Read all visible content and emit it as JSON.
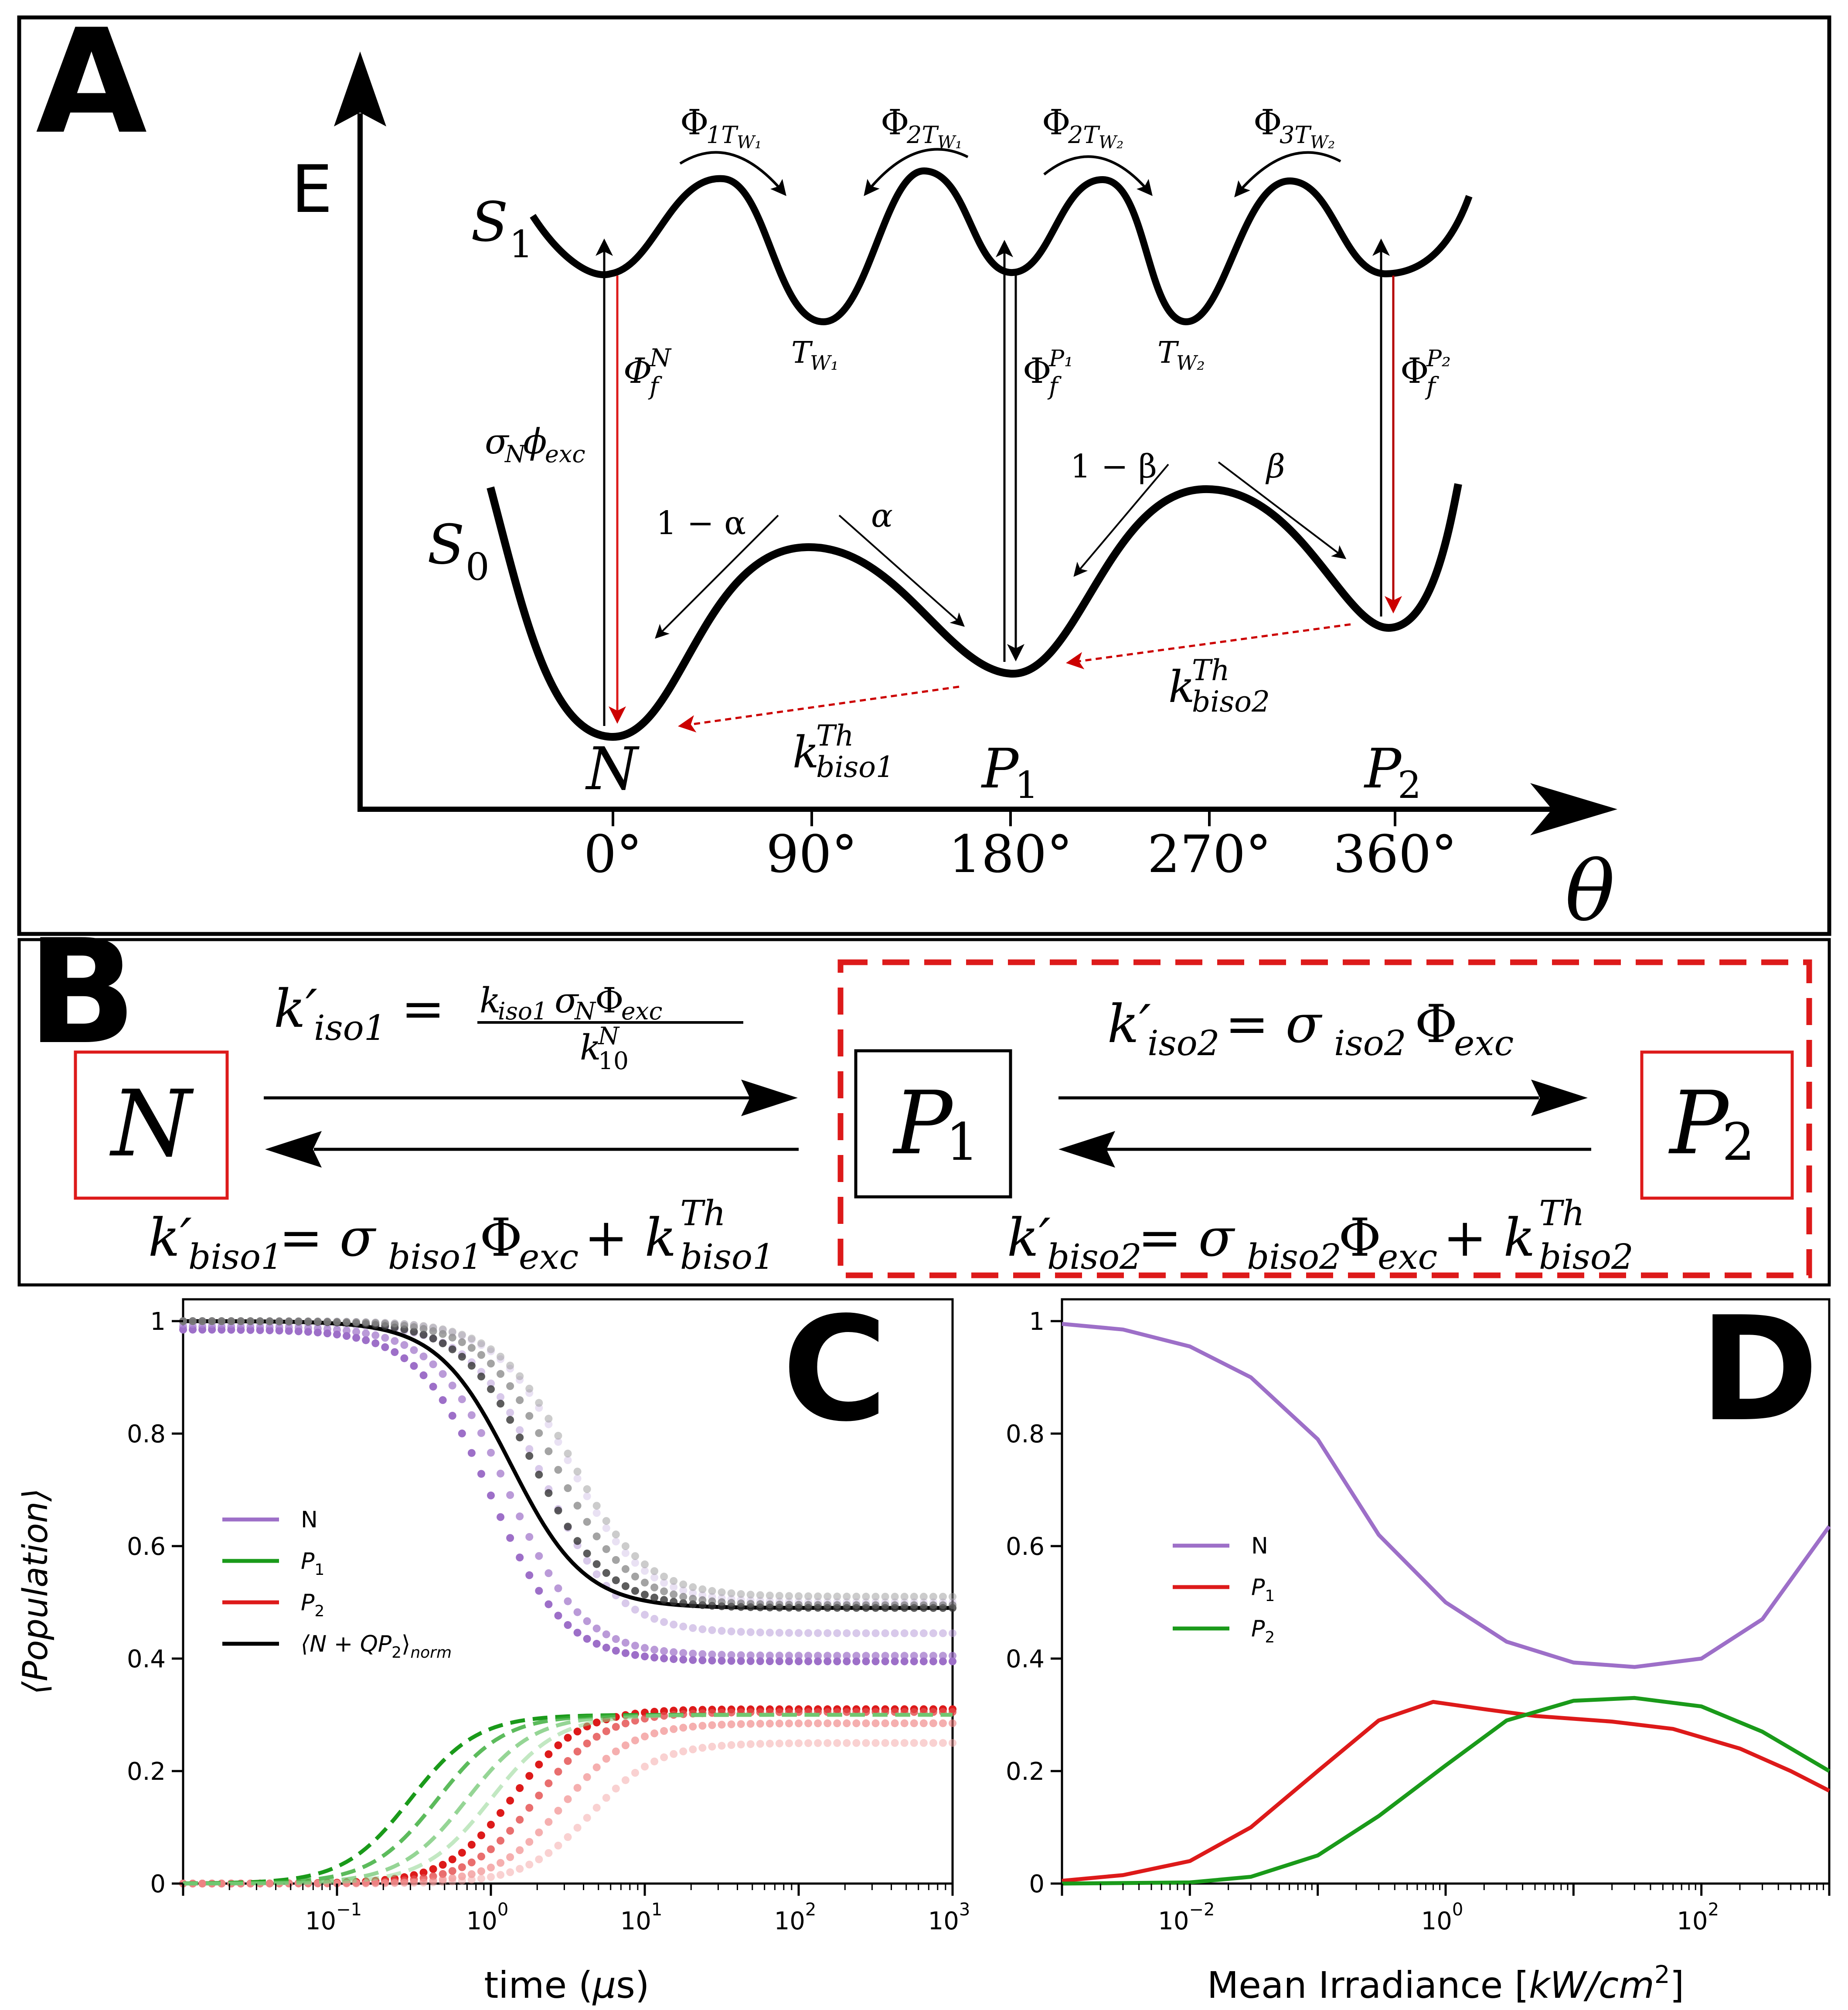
{
  "colors": {
    "black": "#000000",
    "red": "#dd1a1a",
    "dark_red": "#b50000",
    "purple": "#9d6fc8",
    "green": "#1a9a1a",
    "grey": "#9a9a9a"
  },
  "panelA": {
    "letter": "A",
    "energy_axis_label": "E",
    "angle_axis_label": "θ",
    "s1_label": "S",
    "s1_sub": "1",
    "s0_label": "S",
    "s0_sub": "0",
    "ticks": [
      "0°",
      "90°",
      "180°",
      "270°",
      "360°"
    ],
    "states": {
      "N": {
        "main": "N",
        "sub": ""
      },
      "P1": {
        "main": "P",
        "sub": "1"
      },
      "P2": {
        "main": "P",
        "sub": "2"
      }
    },
    "phi_top": [
      {
        "main": "Φ",
        "sub": "1T",
        "subsub": "W₁"
      },
      {
        "main": "Φ",
        "sub": "2T",
        "subsub": "W₁"
      },
      {
        "main": "Φ",
        "sub": "2T",
        "subsub": "W₂"
      },
      {
        "main": "Φ",
        "sub": "3T",
        "subsub": "W₂"
      }
    ],
    "tw_labels": [
      {
        "main": "T",
        "sub": "W₁"
      },
      {
        "main": "T",
        "sub": "W₂"
      }
    ],
    "fluor": [
      {
        "main": "Φ",
        "sup": "N",
        "sub": "f"
      },
      {
        "main": "Φ",
        "sup": "P₁",
        "sub": "f"
      },
      {
        "main": "Φ",
        "sup": "P₂",
        "sub": "f"
      }
    ],
    "excitation_label": {
      "sigma": "σ",
      "sigma_sub": "N",
      "phi": "ϕ",
      "phi_sub": "exc"
    },
    "branch": {
      "one_minus_alpha": "1 − α",
      "alpha": "α",
      "one_minus_beta": "1 − β",
      "beta": "β"
    },
    "thermal": [
      {
        "main": "k",
        "sup": "Th",
        "sub": "biso1"
      },
      {
        "main": "k",
        "sup": "Th",
        "sub": "biso2"
      }
    ]
  },
  "panelB": {
    "letter": "B",
    "states": {
      "N": {
        "main": "N",
        "sub": ""
      },
      "P1": {
        "main": "P",
        "sub": "1"
      },
      "P2": {
        "main": "P",
        "sub": "2"
      }
    },
    "k_iso1": {
      "lhs": "k′",
      "lhs_sub": "iso1",
      "eq": "=",
      "num": "k",
      "num_sub": "iso1",
      "num_sigma": "σ",
      "num_sigma_sub": "N",
      "num_phi": "Φ",
      "num_phi_sub": "exc",
      "den": "k",
      "den_sup": "N",
      "den_sub": "10"
    },
    "k_iso2": {
      "lhs": "k′",
      "lhs_sub": "iso2",
      "eq": "= σ",
      "sigma_sub": "iso2",
      "phi": "Φ",
      "phi_sub": "exc"
    },
    "k_biso1": {
      "lhs": "k′",
      "lhs_sub": "biso1",
      "eq": "= σ",
      "sigma_sub": "biso1",
      "phi": "Φ",
      "phi_sub": "exc",
      "plus": " + k",
      "k_sup": "Th",
      "k_sub": "biso1"
    },
    "k_biso2": {
      "lhs": "k′",
      "lhs_sub": "biso2",
      "eq": "= σ",
      "sigma_sub": "biso2",
      "phi": "Φ",
      "phi_sub": "exc",
      "plus": " + k",
      "k_sup": "Th",
      "k_sub": "biso2"
    }
  },
  "chart_data": [
    {
      "type": "line",
      "panel": "C",
      "letter": "C",
      "xscale": "log",
      "xlim": [
        0.01,
        1000
      ],
      "ylim": [
        0,
        1
      ],
      "xlabel_pre": "time (",
      "xlabel_mu": "μ",
      "xlabel_post": "s)",
      "ylabel": "⟨Population⟩",
      "yticks": [
        "0",
        "0.2",
        "0.4",
        "0.6",
        "0.8",
        "1"
      ],
      "xticks": [
        {
          "base": "10",
          "exp": "−1"
        },
        {
          "base": "10",
          "exp": "0"
        },
        {
          "base": "10",
          "exp": "1"
        },
        {
          "base": "10",
          "exp": "2"
        },
        {
          "base": "10",
          "exp": "3"
        }
      ],
      "legend": [
        {
          "label": "N",
          "sub": ""
        },
        {
          "label": "P",
          "sub": "1"
        },
        {
          "label": "P",
          "sub": "2"
        },
        {
          "label": "⟨N + QP",
          "sub": "2",
          "tail": "⟩",
          "tail_sub": "norm"
        }
      ],
      "legend_position": "center-left",
      "series": [
        {
          "name": "N (dotted, darkest)",
          "style": "dotted",
          "color": "#9d6fc8",
          "opacity": 1.0,
          "start": 0.985,
          "end": 0.395,
          "mid": 1.0,
          "width": 0.55
        },
        {
          "name": "N (dotted)",
          "style": "dotted",
          "color": "#9d6fc8",
          "opacity": 0.7,
          "start": 0.99,
          "end": 0.405,
          "mid": 1.3,
          "width": 0.55
        },
        {
          "name": "N (dotted)",
          "style": "dotted",
          "color": "#b294d6",
          "opacity": 0.5,
          "start": 0.995,
          "end": 0.445,
          "mid": 2.2,
          "width": 0.55
        },
        {
          "name": "N (dotted, lightest)",
          "style": "dotted",
          "color": "#c8b4e2",
          "opacity": 0.4,
          "start": 1.0,
          "end": 0.5,
          "mid": 3.2,
          "width": 0.55
        },
        {
          "name": "⟨N+QP2⟩norm (solid)",
          "style": "solid",
          "color": "#000000",
          "opacity": 1.0,
          "start": 1.0,
          "end": 0.49,
          "mid": 1.35,
          "width": 0.55
        },
        {
          "name": "⟨N+QP2⟩norm (dotted)",
          "style": "dotted",
          "color": "#333333",
          "opacity": 0.8,
          "start": 1.0,
          "end": 0.49,
          "mid": 1.9,
          "width": 0.55
        },
        {
          "name": "⟨N+QP2⟩norm (dotted)",
          "style": "dotted",
          "color": "#666666",
          "opacity": 0.6,
          "start": 1.0,
          "end": 0.495,
          "mid": 2.6,
          "width": 0.55
        },
        {
          "name": "⟨N+QP2⟩norm (dotted, light)",
          "style": "dotted",
          "color": "#9a9a9a",
          "opacity": 0.5,
          "start": 1.0,
          "end": 0.51,
          "mid": 3.3,
          "width": 0.55
        },
        {
          "name": "P2 (dotted)",
          "style": "dotted",
          "color": "#dd1a1a",
          "opacity": 1.0,
          "start": 0.0,
          "end": 0.31,
          "mid": 1.4,
          "width": 0.5
        },
        {
          "name": "P2 (dotted)",
          "style": "dotted",
          "color": "#e44a4a",
          "opacity": 0.8,
          "start": 0.0,
          "end": 0.305,
          "mid": 2.0,
          "width": 0.5
        },
        {
          "name": "P2 (dotted)",
          "style": "dotted",
          "color": "#ee7a7a",
          "opacity": 0.6,
          "start": 0.0,
          "end": 0.285,
          "mid": 3.0,
          "width": 0.5
        },
        {
          "name": "P2 (dotted, light)",
          "style": "dotted",
          "color": "#f4a4a4",
          "opacity": 0.5,
          "start": 0.0,
          "end": 0.25,
          "mid": 4.5,
          "width": 0.5
        },
        {
          "name": "P1 (dashed)",
          "style": "dashed",
          "color": "#1a9a1a",
          "opacity": 1.0,
          "start": 0.0,
          "end": 0.3,
          "mid": 0.3,
          "width": 0.5
        },
        {
          "name": "P1 (dashed)",
          "style": "dashed",
          "color": "#33aa33",
          "opacity": 0.8,
          "start": 0.0,
          "end": 0.3,
          "mid": 0.45,
          "width": 0.5
        },
        {
          "name": "P1 (dashed)",
          "style": "dashed",
          "color": "#5cbf5c",
          "opacity": 0.65,
          "start": 0.0,
          "end": 0.3,
          "mid": 0.7,
          "width": 0.5
        },
        {
          "name": "P1 (dashed, light)",
          "style": "dashed",
          "color": "#8fd68f",
          "opacity": 0.55,
          "start": 0.0,
          "end": 0.3,
          "mid": 1.0,
          "width": 0.5
        }
      ]
    },
    {
      "type": "line",
      "panel": "D",
      "letter": "D",
      "xscale": "log",
      "xlim": [
        0.001,
        1000
      ],
      "ylim": [
        0,
        1
      ],
      "xlabel_pre": "Mean Irradiance [",
      "xlabel_unit": "kW/cm",
      "xlabel_sup": "2",
      "xlabel_post": "]",
      "yticks": [
        "0",
        "0.2",
        "0.4",
        "0.6",
        "0.8",
        "1"
      ],
      "xticks": [
        {
          "base": "10",
          "exp": "−2"
        },
        {
          "base": "10",
          "exp": "0"
        },
        {
          "base": "10",
          "exp": "2"
        }
      ],
      "legend": [
        {
          "label": "N",
          "sub": ""
        },
        {
          "label": "P",
          "sub": "1"
        },
        {
          "label": "P",
          "sub": "2"
        }
      ],
      "legend_position": "center",
      "series": [
        {
          "name": "N",
          "color": "#9d6fc8",
          "points": [
            [
              0.001,
              0.995
            ],
            [
              0.003,
              0.985
            ],
            [
              0.01,
              0.955
            ],
            [
              0.03,
              0.9
            ],
            [
              0.1,
              0.79
            ],
            [
              0.3,
              0.62
            ],
            [
              1,
              0.5
            ],
            [
              3,
              0.43
            ],
            [
              10,
              0.393
            ],
            [
              30,
              0.385
            ],
            [
              100,
              0.4
            ],
            [
              300,
              0.47
            ],
            [
              1000,
              0.635
            ]
          ]
        },
        {
          "name": "P1",
          "color": "#dd1a1a",
          "points": [
            [
              0.001,
              0.005
            ],
            [
              0.003,
              0.015
            ],
            [
              0.01,
              0.04
            ],
            [
              0.03,
              0.1
            ],
            [
              0.1,
              0.2
            ],
            [
              0.3,
              0.29
            ],
            [
              0.8,
              0.323
            ],
            [
              2,
              0.31
            ],
            [
              5,
              0.298
            ],
            [
              20,
              0.288
            ],
            [
              60,
              0.275
            ],
            [
              200,
              0.24
            ],
            [
              500,
              0.2
            ],
            [
              1000,
              0.165
            ]
          ]
        },
        {
          "name": "P2",
          "color": "#1a9a1a",
          "points": [
            [
              0.001,
              0.0
            ],
            [
              0.01,
              0.002
            ],
            [
              0.03,
              0.012
            ],
            [
              0.1,
              0.05
            ],
            [
              0.3,
              0.12
            ],
            [
              1,
              0.21
            ],
            [
              3,
              0.29
            ],
            [
              10,
              0.325
            ],
            [
              30,
              0.33
            ],
            [
              100,
              0.315
            ],
            [
              300,
              0.27
            ],
            [
              1000,
              0.2
            ]
          ]
        }
      ]
    }
  ]
}
